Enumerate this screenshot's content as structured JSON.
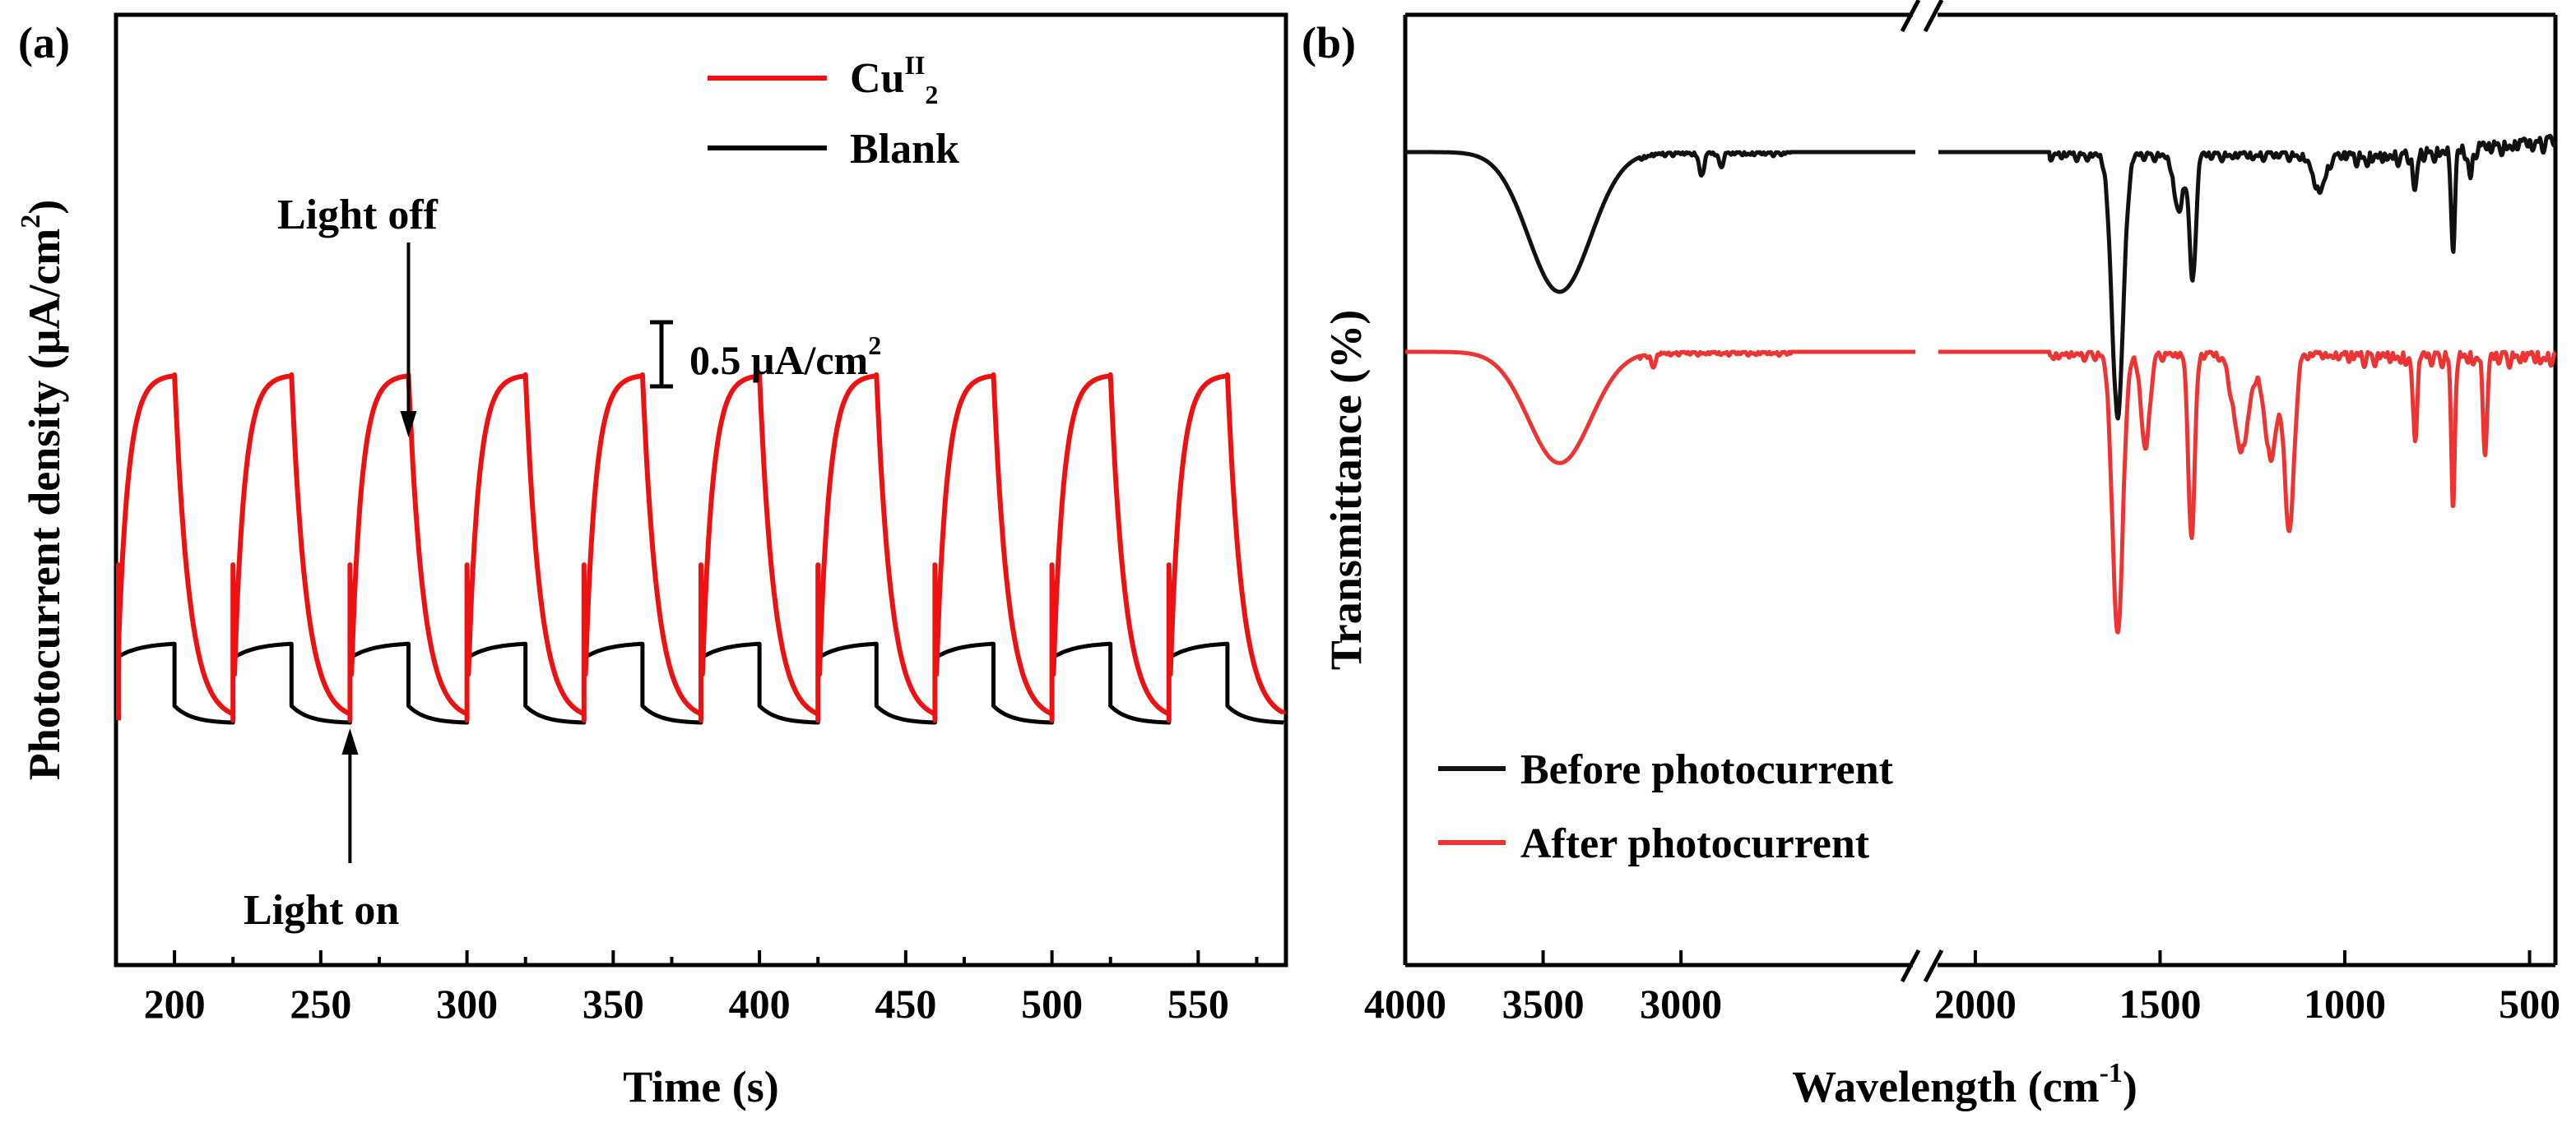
{
  "chart_data": [
    {
      "type": "line",
      "panel_label": "(a)",
      "title": "",
      "xlabel": "Time (s)",
      "ylabel_prefix": "Photocurrent density (μA/cm",
      "ylabel_sup": "2",
      "ylabel_suffix": ")",
      "xlim": [
        180,
        580
      ],
      "x_ticks": [
        200,
        250,
        300,
        350,
        400,
        450,
        500,
        550
      ],
      "x_tick_labels": [
        "200",
        "250",
        "300",
        "350",
        "400",
        "450",
        "500",
        "550"
      ],
      "y_units": "μA/cm2 (relative, no tick labels)",
      "ylim": [
        -0.85,
        2.45
      ],
      "light_on_times": [
        180,
        220,
        260,
        300,
        340,
        380,
        420,
        460,
        500,
        540
      ],
      "light_off_times": [
        200,
        240,
        280,
        320,
        360,
        400,
        440,
        480,
        520,
        560
      ],
      "series": [
        {
          "name": "CuII2",
          "color": "#ee1111",
          "dark_level": 0.0,
          "photo_level": 1.2,
          "rise_tau_s": 3.5,
          "decay_tau_s": 5.0
        },
        {
          "name": "Blank",
          "color": "#000000",
          "dark_level": 0.0,
          "photo_level": 0.27,
          "rise_tau_s": 8.0,
          "decay_tau_s": 3.0,
          "dark_offset": 0.05
        }
      ],
      "annotations": {
        "light_off": {
          "text": "Light off",
          "time": 280
        },
        "light_on": {
          "text": "Light on",
          "time": 260
        },
        "scale_bar": {
          "text": "0.5 μA/cm",
          "sup": "2",
          "value": 0.5
        }
      },
      "legend": {
        "placement": "top-right",
        "entries": [
          {
            "label_main": "Cu",
            "label_sup": "II",
            "label_sub": "2",
            "color": "#ee1111"
          },
          {
            "label_main": "Blank",
            "label_sup": "",
            "label_sub": "",
            "color": "#000000"
          }
        ]
      }
    },
    {
      "type": "line",
      "panel_label": "(b)",
      "title": "",
      "xlabel_prefix": "Wavelength (cm",
      "xlabel_sup": "-1",
      "xlabel_suffix": ")",
      "ylabel": "Transmittance (%)",
      "x_reversed": true,
      "xlim": [
        4000,
        430
      ],
      "axis_break_between": [
        2150,
        2100
      ],
      "x_ticks": [
        4000,
        3500,
        3000,
        2000,
        1500,
        1000,
        500
      ],
      "x_tick_labels": [
        "4000",
        "3500",
        "3000",
        "2000",
        "1500",
        "1000",
        "500"
      ],
      "y_units": "transmittance (relative, no tick labels)",
      "series": [
        {
          "name": "Before photocurrent",
          "color": "#111111",
          "baseline": 0.0,
          "bands": [
            [
              3440,
              1.0,
              160
            ],
            [
              2925,
              0.16,
              12
            ],
            [
              2855,
              0.1,
              10
            ],
            [
              1615,
              1.85,
              22
            ],
            [
              1450,
              0.4,
              18
            ],
            [
              1412,
              0.9,
              12
            ],
            [
              1070,
              0.25,
              25
            ],
            [
              810,
              0.28,
              8
            ],
            [
              707,
              0.75,
              7
            ],
            [
              660,
              0.22,
              7
            ]
          ]
        },
        {
          "name": "After photocurrent",
          "color": "#ee3333",
          "baseline": 0.0,
          "bands": [
            [
              3440,
              0.82,
              160
            ],
            [
              3100,
              0.1,
              10
            ],
            [
              1615,
              2.05,
              20
            ],
            [
              1540,
              0.7,
              16
            ],
            [
              1415,
              1.35,
              12
            ],
            [
              1280,
              0.7,
              30
            ],
            [
              1200,
              0.75,
              25
            ],
            [
              1150,
              1.3,
              18
            ],
            [
              810,
              0.6,
              8
            ],
            [
              707,
              1.1,
              7
            ],
            [
              620,
              0.7,
              8
            ]
          ]
        }
      ],
      "legend": {
        "placement": "bottom-left",
        "entries": [
          {
            "label": "Before photocurrent",
            "color": "#111111"
          },
          {
            "label": "After photocurrent",
            "color": "#ee3333"
          }
        ]
      }
    }
  ]
}
